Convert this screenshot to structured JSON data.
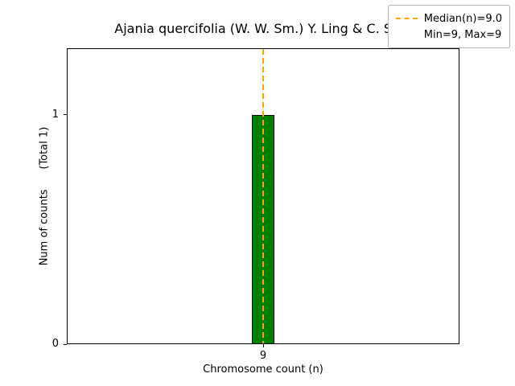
{
  "chart_data": {
    "type": "bar",
    "title": "Ajania quercifolia (W. W. Sm.) Y. Ling & C. Shih",
    "categories": [
      "9"
    ],
    "values": [
      1
    ],
    "xlabel": "Chromosome count (n)",
    "ylabel": "Num of counts      (Total 1)",
    "ylim": [
      0,
      1.29
    ],
    "yticks": [
      0,
      1
    ],
    "grid": false,
    "bar": {
      "color": "#008000",
      "edge_color": "#000000"
    },
    "median_line": {
      "category": "9",
      "value_label": "9.0",
      "color": "#FFA500",
      "style": "dashed"
    },
    "legend": {
      "position": "upper right",
      "labels": [
        "Median(n)=9.0",
        "Min=9, Max=9"
      ]
    },
    "stats": {
      "median": 9.0,
      "min": 9,
      "max": 9,
      "total_counts": 1
    }
  }
}
